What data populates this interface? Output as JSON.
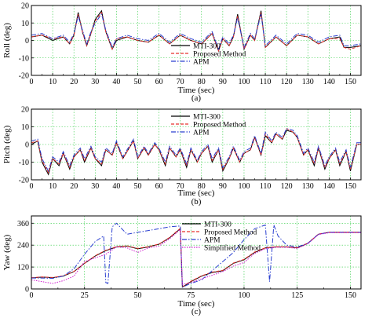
{
  "chart_data": [
    {
      "type": "line",
      "caption": "(a)",
      "xlabel": "Time (sec)",
      "ylabel": "Roll (deg)",
      "xlim": [
        0,
        155
      ],
      "ylim": [
        -20,
        20
      ],
      "xticks": [
        0,
        10,
        20,
        30,
        40,
        50,
        60,
        70,
        80,
        90,
        100,
        110,
        120,
        130,
        140,
        150
      ],
      "yticks": [
        -20,
        -10,
        0,
        10,
        20
      ],
      "grid": true,
      "legend_position": "lower-center",
      "series": [
        {
          "name": "MTI-300",
          "color": "#000000",
          "dash": "solid",
          "x": [
            0,
            5,
            10,
            15,
            18,
            20,
            22,
            24,
            26,
            28,
            30,
            33,
            35,
            38,
            40,
            45,
            50,
            55,
            60,
            65,
            70,
            75,
            80,
            85,
            88,
            90,
            93,
            95,
            97,
            100,
            103,
            105,
            108,
            110,
            115,
            120,
            125,
            130,
            135,
            140,
            145,
            147,
            150,
            155
          ],
          "y": [
            2,
            3,
            0,
            2,
            -2,
            3,
            16,
            5,
            -3,
            4,
            12,
            17,
            5,
            -5,
            0,
            2,
            0,
            -1,
            3,
            -2,
            3,
            0,
            -2,
            4,
            -6,
            1,
            -3,
            2,
            15,
            -5,
            3,
            0,
            17,
            -4,
            2,
            -3,
            3,
            2,
            -2,
            1,
            2,
            -4,
            -4,
            -3
          ]
        },
        {
          "name": "Proposed Method",
          "color": "#e8302c",
          "dash": "4,2",
          "x": [
            0,
            5,
            10,
            15,
            18,
            20,
            22,
            24,
            26,
            28,
            30,
            33,
            35,
            38,
            40,
            45,
            50,
            55,
            60,
            65,
            70,
            75,
            80,
            85,
            88,
            90,
            93,
            95,
            97,
            100,
            103,
            105,
            108,
            110,
            115,
            120,
            125,
            130,
            135,
            140,
            145,
            147,
            150,
            155
          ],
          "y": [
            2,
            3,
            1,
            2,
            -2,
            3,
            15,
            5,
            -3,
            4,
            11,
            16,
            5,
            -5,
            1,
            2,
            0,
            -1,
            3,
            -2,
            3,
            0,
            -2,
            4,
            -6,
            1,
            -3,
            2,
            14,
            -5,
            3,
            0,
            16,
            -4,
            2,
            -3,
            3,
            2,
            -2,
            1,
            1,
            -4,
            -5,
            -3
          ]
        },
        {
          "name": "APM",
          "color": "#2a3fd0",
          "dash": "6,2,1.5,2",
          "x": [
            0,
            5,
            10,
            15,
            18,
            20,
            22,
            24,
            26,
            28,
            30,
            33,
            35,
            38,
            40,
            45,
            50,
            55,
            60,
            65,
            70,
            75,
            80,
            85,
            88,
            90,
            93,
            95,
            97,
            100,
            103,
            105,
            108,
            110,
            115,
            120,
            125,
            130,
            135,
            140,
            145,
            147,
            150,
            155
          ],
          "y": [
            3,
            4,
            1,
            3,
            -1,
            4,
            14,
            6,
            -2,
            5,
            10,
            15,
            6,
            -4,
            1,
            3,
            1,
            0,
            4,
            -1,
            4,
            1,
            -1,
            5,
            -5,
            2,
            -2,
            3,
            13,
            -4,
            4,
            1,
            15,
            -3,
            3,
            -2,
            4,
            3,
            -1,
            2,
            3,
            -3,
            -3,
            -2
          ]
        }
      ]
    },
    {
      "type": "line",
      "caption": "(b)",
      "xlabel": "Time (sec)",
      "ylabel": "Pitch (deg)",
      "xlim": [
        0,
        155
      ],
      "ylim": [
        -20,
        20
      ],
      "xticks": [
        0,
        10,
        20,
        30,
        40,
        50,
        60,
        70,
        80,
        90,
        100,
        110,
        120,
        130,
        140,
        150
      ],
      "yticks": [
        -20,
        -10,
        0,
        10,
        20
      ],
      "grid": true,
      "legend_position": "top-center",
      "series": [
        {
          "name": "MTI-300",
          "color": "#000000",
          "dash": "solid",
          "x": [
            0,
            3,
            5,
            8,
            10,
            13,
            15,
            18,
            20,
            23,
            25,
            28,
            30,
            33,
            35,
            38,
            40,
            43,
            45,
            48,
            50,
            53,
            55,
            58,
            60,
            63,
            65,
            68,
            70,
            73,
            75,
            78,
            80,
            83,
            85,
            88,
            90,
            93,
            95,
            98,
            100,
            103,
            105,
            108,
            110,
            113,
            115,
            118,
            120,
            123,
            125,
            128,
            130,
            133,
            135,
            138,
            140,
            143,
            145,
            148,
            150,
            153,
            155
          ],
          "y": [
            0,
            2,
            -10,
            -17,
            -8,
            -12,
            -5,
            -14,
            -7,
            -3,
            -10,
            -2,
            -8,
            -12,
            -3,
            -6,
            1,
            -8,
            -4,
            2,
            -8,
            -2,
            -6,
            0,
            -3,
            -12,
            -2,
            -7,
            -3,
            -13,
            -3,
            -10,
            -5,
            -1,
            -10,
            -3,
            -15,
            -8,
            -2,
            -10,
            -5,
            -3,
            4,
            -6,
            5,
            1,
            6,
            3,
            8,
            7,
            4,
            -6,
            -3,
            -12,
            -2,
            -14,
            -8,
            -3,
            -12,
            -4,
            -15,
            0,
            0
          ]
        },
        {
          "name": "Proposed Method",
          "color": "#e8302c",
          "dash": "4,2",
          "x": [
            0,
            3,
            5,
            8,
            10,
            13,
            15,
            18,
            20,
            23,
            25,
            28,
            30,
            33,
            35,
            38,
            40,
            43,
            45,
            48,
            50,
            53,
            55,
            58,
            60,
            63,
            65,
            68,
            70,
            73,
            75,
            78,
            80,
            83,
            85,
            88,
            90,
            93,
            95,
            98,
            100,
            103,
            105,
            108,
            110,
            113,
            115,
            118,
            120,
            123,
            125,
            128,
            130,
            133,
            135,
            138,
            140,
            143,
            145,
            148,
            150,
            153,
            155
          ],
          "y": [
            1,
            2,
            -9,
            -16,
            -8,
            -11,
            -5,
            -13,
            -7,
            -3,
            -9,
            -2,
            -8,
            -11,
            -3,
            -6,
            1,
            -8,
            -4,
            2,
            -8,
            -2,
            -6,
            0,
            -3,
            -11,
            -2,
            -7,
            -3,
            -12,
            -3,
            -10,
            -5,
            -1,
            -9,
            -3,
            -14,
            -8,
            -2,
            -10,
            -5,
            -3,
            4,
            -6,
            6,
            1,
            6,
            3,
            9,
            7,
            4,
            -6,
            -3,
            -11,
            -2,
            -13,
            -8,
            -3,
            -11,
            -4,
            -14,
            0,
            0
          ]
        },
        {
          "name": "APM",
          "color": "#2a3fd0",
          "dash": "6,2,1.5,2",
          "x": [
            0,
            3,
            5,
            8,
            10,
            13,
            15,
            18,
            20,
            23,
            25,
            28,
            30,
            33,
            35,
            38,
            40,
            43,
            45,
            48,
            50,
            53,
            55,
            58,
            60,
            63,
            65,
            68,
            70,
            73,
            75,
            78,
            80,
            83,
            85,
            88,
            90,
            93,
            95,
            98,
            100,
            103,
            105,
            108,
            110,
            113,
            115,
            118,
            120,
            123,
            125,
            128,
            130,
            133,
            135,
            138,
            140,
            143,
            145,
            148,
            150,
            153,
            155
          ],
          "y": [
            2,
            3,
            -8,
            -15,
            -7,
            -10,
            -4,
            -12,
            -6,
            -2,
            -8,
            -1,
            -7,
            -10,
            -2,
            -5,
            2,
            -7,
            -3,
            3,
            -7,
            -1,
            -5,
            1,
            -2,
            -10,
            -1,
            -6,
            -2,
            -11,
            -2,
            -9,
            -4,
            0,
            -8,
            -2,
            -13,
            -7,
            -1,
            -9,
            -4,
            -2,
            5,
            -5,
            7,
            2,
            7,
            4,
            9,
            8,
            5,
            -5,
            -2,
            -10,
            -1,
            -12,
            -7,
            -2,
            -10,
            -3,
            -13,
            1,
            1
          ]
        }
      ]
    },
    {
      "type": "line",
      "caption": "(c)",
      "xlabel": "Time (sec)",
      "ylabel": "Yaw (deg)",
      "xlim": [
        0,
        155
      ],
      "ylim": [
        0,
        400
      ],
      "xticks": [
        0,
        25,
        50,
        75,
        100,
        125,
        150
      ],
      "yticks": [
        0,
        120,
        240,
        360
      ],
      "grid": true,
      "legend_position": "top-center",
      "series": [
        {
          "name": "MTI-300",
          "color": "#000000",
          "dash": "solid",
          "x": [
            0,
            5,
            10,
            15,
            20,
            25,
            30,
            35,
            40,
            45,
            50,
            55,
            60,
            65,
            70,
            71,
            75,
            80,
            85,
            90,
            95,
            100,
            105,
            110,
            115,
            120,
            125,
            130,
            135,
            140,
            145,
            150,
            155
          ],
          "y": [
            60,
            65,
            62,
            70,
            95,
            140,
            180,
            210,
            230,
            235,
            220,
            230,
            245,
            280,
            330,
            10,
            40,
            70,
            90,
            100,
            140,
            160,
            200,
            225,
            230,
            230,
            225,
            250,
            300,
            310,
            310,
            310,
            310
          ]
        },
        {
          "name": "Proposed Method",
          "color": "#e8302c",
          "dash": "4,2",
          "x": [
            0,
            5,
            10,
            15,
            20,
            25,
            30,
            35,
            40,
            45,
            50,
            55,
            60,
            65,
            70,
            71,
            75,
            80,
            85,
            90,
            95,
            100,
            105,
            110,
            115,
            120,
            125,
            130,
            135,
            140,
            145,
            150,
            155
          ],
          "y": [
            62,
            66,
            63,
            72,
            96,
            140,
            182,
            212,
            232,
            236,
            222,
            232,
            246,
            282,
            332,
            12,
            42,
            72,
            92,
            102,
            142,
            162,
            202,
            226,
            231,
            231,
            226,
            251,
            301,
            311,
            311,
            311,
            311
          ]
        },
        {
          "name": "APM",
          "color": "#2a3fd0",
          "dash": "6,2,1.5,2",
          "x": [
            0,
            5,
            10,
            15,
            20,
            25,
            30,
            34,
            35,
            36,
            38,
            40,
            45,
            50,
            55,
            60,
            65,
            70,
            71,
            75,
            80,
            85,
            90,
            95,
            100,
            105,
            110,
            112,
            114,
            116,
            120,
            125,
            130,
            135,
            140,
            145,
            150,
            155
          ],
          "y": [
            60,
            60,
            58,
            70,
            110,
            190,
            260,
            290,
            35,
            30,
            340,
            360,
            300,
            310,
            320,
            330,
            340,
            345,
            10,
            30,
            50,
            100,
            150,
            200,
            270,
            330,
            350,
            40,
            350,
            290,
            240,
            230,
            250,
            300,
            310,
            310,
            310,
            310
          ]
        },
        {
          "name": "Simplified Method",
          "color": "#d020d0",
          "dash": "1.5,1.5",
          "x": [
            0,
            5,
            10,
            15,
            20,
            25,
            30,
            35,
            40,
            45,
            50,
            55,
            60,
            65,
            70,
            71,
            75,
            80,
            85,
            90,
            95,
            100,
            105,
            110,
            115,
            120,
            125,
            130,
            135,
            140,
            145,
            150,
            155
          ],
          "y": [
            50,
            40,
            30,
            45,
            70,
            150,
            170,
            190,
            230,
            225,
            200,
            225,
            235,
            275,
            325,
            25,
            35,
            55,
            75,
            95,
            125,
            145,
            195,
            220,
            228,
            228,
            222,
            248,
            298,
            308,
            308,
            308,
            308
          ]
        }
      ]
    }
  ]
}
